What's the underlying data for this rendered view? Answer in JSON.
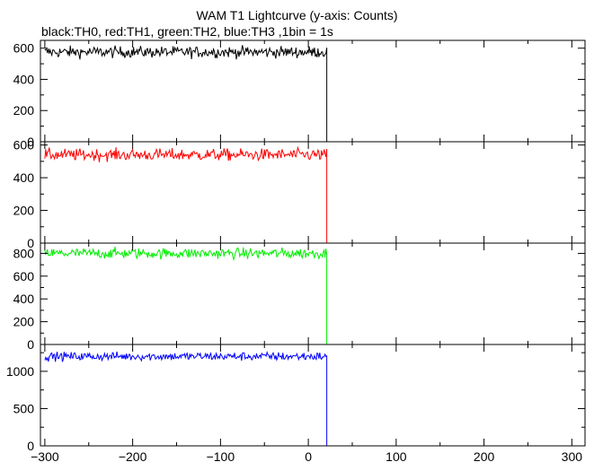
{
  "chart_data": {
    "type": "line",
    "title": "WAM T1 Lightcurve (y-axis: Counts)",
    "subtitle": "black:TH0, red:TH1, green:TH2, blue:TH3 ,1bin = 1s",
    "xlim": [
      -305,
      315
    ],
    "x_ticks": [
      -300,
      -200,
      -100,
      0,
      100,
      200,
      300
    ],
    "x_tick_labels": [
      "−300",
      "−200",
      "−100",
      "0",
      "100",
      "200",
      "300"
    ],
    "drop_time": 21,
    "grid": false,
    "panels": [
      {
        "series": "TH0",
        "color": "#000000",
        "ylim": [
          0,
          650
        ],
        "y_ticks": [
          0,
          200,
          400,
          600
        ],
        "pre_level": 575,
        "noise": 22,
        "post_level": 0
      },
      {
        "series": "TH1",
        "color": "#ff0000",
        "ylim": [
          0,
          620
        ],
        "y_ticks": [
          0,
          200,
          400,
          600
        ],
        "pre_level": 540,
        "noise": 22,
        "post_level": 0
      },
      {
        "series": "TH2",
        "color": "#00ee00",
        "ylim": [
          0,
          890
        ],
        "y_ticks": [
          0,
          200,
          400,
          600,
          800
        ],
        "pre_level": 800,
        "noise": 28,
        "post_level": 0
      },
      {
        "series": "TH3",
        "color": "#0000ff",
        "ylim": [
          0,
          1360
        ],
        "y_ticks": [
          0,
          500,
          1000
        ],
        "pre_level": 1200,
        "noise": 35,
        "post_level": 0
      }
    ]
  }
}
